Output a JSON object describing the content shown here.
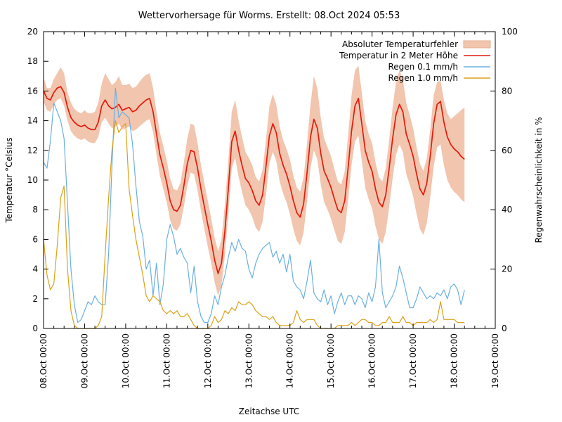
{
  "title": "Wettervorhersage für Worms. Erstellt: 08.Oct 2024 05:53",
  "axes": {
    "x": {
      "label": "Zeitachse UTC",
      "tick_labels": [
        "08.Oct 00:00",
        "09.Oct 00:00",
        "10.Oct 00:00",
        "11.Oct 00:00",
        "12.Oct 00:00",
        "13.Oct 00:00",
        "14.Oct 00:00",
        "15.Oct 00:00",
        "16.Oct 00:00",
        "17.Oct 00:00",
        "18.Oct 00:00",
        "19.Oct 00:00"
      ],
      "minor_ticks_per_day": 4
    },
    "y_left": {
      "label": "Temperatur °Celsius",
      "min": 0,
      "max": 20,
      "step": 2
    },
    "y_right": {
      "label": "Regenwahrscheinlichkeit in %",
      "min": 0,
      "max": 100,
      "step": 20
    }
  },
  "legend": [
    {
      "label": "Absoluter Temperaturfehler",
      "type": "band",
      "color": "#f2c5ae",
      "border": "#e0ad92"
    },
    {
      "label": "Temperatur in 2 Meter Höhe",
      "type": "line",
      "color": "#e41a0c"
    },
    {
      "label": "Regen 0.1 mm/h",
      "type": "line",
      "color": "#69b0e2"
    },
    {
      "label": "Regen 1.0 mm/h",
      "type": "line",
      "color": "#dca117"
    }
  ],
  "chart_data": {
    "type": "line",
    "title": "Wettervorhersage für Worms. Erstellt: 08.Oct 2024 05:53",
    "xlabel": "Zeitachse UTC",
    "x_unit": "hours since 08.Oct 2024 00:00 UTC",
    "x_step_hours": 2,
    "x_start_hour": 0,
    "x_axis_range_hours": [
      0,
      264
    ],
    "y_left_range": [
      0,
      20
    ],
    "y_right_range": [
      0,
      100
    ],
    "grid": false,
    "legend_position": "top-right-inside",
    "series": [
      {
        "name": "Absoluter Temperaturfehler",
        "kind": "band",
        "axis": "left",
        "color": "#f2c5ae",
        "upper": [
          16.9,
          16.2,
          16.2,
          16.8,
          17.2,
          17.6,
          17.2,
          15.9,
          15.2,
          14.8,
          14.6,
          14.5,
          14.7,
          14.5,
          14.5,
          14.6,
          15.2,
          16.5,
          17.2,
          16.8,
          16.4,
          16.6,
          17.0,
          16.4,
          16.4,
          16.5,
          16.2,
          16.3,
          16.6,
          16.9,
          17.1,
          17.2,
          16.2,
          14.6,
          13.2,
          12.3,
          11.3,
          10.1,
          9.4,
          9.3,
          9.8,
          11.2,
          12.8,
          13.8,
          13.7,
          12.5,
          11.0,
          9.8,
          8.6,
          7.4,
          6.1,
          5.2,
          6.0,
          8.4,
          11.3,
          14.6,
          15.4,
          14.0,
          12.9,
          11.9,
          11.5,
          11.0,
          10.2,
          9.9,
          10.7,
          12.7,
          15.0,
          15.8,
          15.1,
          13.6,
          12.7,
          12.1,
          11.4,
          10.3,
          9.5,
          9.2,
          10.2,
          12.5,
          15.1,
          17.0,
          16.2,
          14.2,
          12.8,
          12.2,
          11.6,
          10.7,
          9.9,
          9.7,
          10.6,
          13.0,
          15.7,
          17.4,
          17.7,
          15.9,
          14.0,
          13.1,
          12.5,
          11.2,
          10.2,
          9.9,
          10.8,
          12.7,
          14.9,
          16.6,
          17.4,
          16.8,
          15.2,
          14.4,
          13.5,
          12.2,
          11.1,
          10.6,
          11.5,
          13.4,
          15.7,
          16.6,
          16.7,
          15.4,
          14.5,
          14.1,
          14.3,
          14.5,
          14.7,
          14.9
        ],
        "lower": [
          15.3,
          14.7,
          14.6,
          15.1,
          15.4,
          15.5,
          15.0,
          14.0,
          13.3,
          13.0,
          12.8,
          12.7,
          12.8,
          12.6,
          12.5,
          12.5,
          12.9,
          13.9,
          14.2,
          13.8,
          13.5,
          13.6,
          13.8,
          13.4,
          13.5,
          13.6,
          13.3,
          13.4,
          13.6,
          13.8,
          14.0,
          14.1,
          13.2,
          11.7,
          10.3,
          9.4,
          8.5,
          7.3,
          6.7,
          6.6,
          7.0,
          8.2,
          9.6,
          10.5,
          10.4,
          9.3,
          7.9,
          6.7,
          5.5,
          4.4,
          3.1,
          2.2,
          2.9,
          5.0,
          7.7,
          10.8,
          11.5,
          10.2,
          9.2,
          8.3,
          8.0,
          7.5,
          6.8,
          6.5,
          7.2,
          9.0,
          11.1,
          11.9,
          11.3,
          9.9,
          9.1,
          8.5,
          7.7,
          6.7,
          5.9,
          5.6,
          6.5,
          8.5,
          10.8,
          12.0,
          11.4,
          9.7,
          8.5,
          8.0,
          7.4,
          6.6,
          5.9,
          5.7,
          6.5,
          8.6,
          11.0,
          12.6,
          13.0,
          11.3,
          9.5,
          8.7,
          8.1,
          6.9,
          6.0,
          5.7,
          6.5,
          8.2,
          10.1,
          11.7,
          12.4,
          11.9,
          10.4,
          9.7,
          8.9,
          7.7,
          6.7,
          6.3,
          7.1,
          8.8,
          10.9,
          12.2,
          12.4,
          11.0,
          10.0,
          9.5,
          9.2,
          9.0,
          8.7,
          8.5
        ]
      },
      {
        "name": "Temperatur in 2 Meter Höhe",
        "kind": "line",
        "axis": "left",
        "color": "#e41a0c",
        "width": 1.7,
        "values": [
          16.0,
          15.5,
          15.4,
          15.9,
          16.2,
          16.3,
          15.9,
          14.9,
          14.2,
          13.9,
          13.7,
          13.6,
          13.7,
          13.5,
          13.4,
          13.4,
          13.9,
          15.0,
          15.4,
          15.0,
          14.8,
          14.9,
          15.1,
          14.7,
          14.8,
          14.9,
          14.6,
          14.7,
          15.0,
          15.2,
          15.4,
          15.5,
          14.6,
          13.1,
          11.7,
          10.8,
          9.8,
          8.6,
          8.0,
          7.9,
          8.3,
          9.6,
          11.1,
          12.0,
          11.9,
          10.8,
          9.4,
          8.2,
          7.0,
          5.9,
          4.6,
          3.7,
          4.4,
          6.6,
          9.4,
          12.6,
          13.3,
          12.0,
          11.0,
          10.1,
          9.8,
          9.3,
          8.6,
          8.3,
          9.0,
          10.9,
          13.0,
          13.8,
          13.2,
          11.8,
          11.0,
          10.4,
          9.6,
          8.6,
          7.8,
          7.5,
          8.4,
          10.5,
          12.9,
          14.1,
          13.5,
          11.8,
          10.6,
          10.1,
          9.5,
          8.7,
          8.0,
          7.8,
          8.6,
          10.8,
          13.3,
          15.0,
          15.5,
          13.8,
          12.0,
          11.2,
          10.6,
          9.4,
          8.5,
          8.2,
          9.0,
          10.8,
          12.8,
          14.4,
          15.1,
          14.6,
          13.1,
          12.4,
          11.6,
          10.4,
          9.4,
          9.0,
          9.8,
          11.6,
          13.8,
          15.1,
          15.3,
          13.9,
          12.9,
          12.4,
          12.1,
          11.9,
          11.6,
          11.4
        ]
      },
      {
        "name": "Regen 0.1 mm/h",
        "kind": "line",
        "axis": "right",
        "color": "#69b0e2",
        "width": 1.2,
        "values": [
          56,
          54,
          63,
          76,
          73,
          70,
          64,
          42,
          20,
          8,
          2,
          3,
          6,
          9,
          8,
          11,
          9,
          8,
          8,
          25,
          55,
          81,
          71,
          73,
          72,
          71,
          62,
          48,
          36,
          31,
          20,
          23,
          11,
          22,
          8,
          15,
          30,
          35,
          31,
          25,
          27,
          24,
          22,
          12,
          21,
          9,
          4,
          2,
          2,
          5,
          11,
          8,
          14,
          18,
          24,
          29,
          26,
          30,
          27,
          26,
          20,
          17,
          22,
          25,
          27,
          28,
          29,
          24,
          26,
          22,
          25,
          19,
          25,
          16,
          14,
          13,
          10,
          16,
          23,
          12,
          10,
          9,
          13,
          8,
          11,
          5,
          9,
          12,
          8,
          11,
          11,
          8,
          11,
          10,
          7,
          12,
          9,
          14,
          30,
          12,
          7,
          9,
          11,
          14,
          21,
          17,
          12,
          7,
          7,
          10,
          14,
          12,
          10,
          11,
          10,
          12,
          11,
          13,
          10,
          14,
          15,
          13,
          8,
          13
        ]
      },
      {
        "name": "Regen 1.0 mm/h",
        "kind": "line",
        "axis": "right",
        "color": "#dca117",
        "width": 1.2,
        "values": [
          30,
          18,
          13,
          15,
          28,
          44,
          48,
          20,
          6,
          1,
          0,
          0,
          0,
          0,
          0,
          0,
          1,
          4,
          25,
          44,
          60,
          70,
          66,
          68,
          69,
          47,
          38,
          30,
          24,
          18,
          11,
          9,
          11,
          10,
          9,
          6,
          5,
          6,
          5,
          6,
          4,
          4,
          5,
          3,
          1,
          0,
          0,
          0,
          0,
          1,
          4,
          2,
          3,
          6,
          5,
          7,
          6,
          9,
          8,
          8,
          9,
          8,
          6,
          5,
          4,
          4,
          3,
          4,
          2,
          1,
          1,
          1,
          1,
          2,
          6,
          3,
          2,
          3,
          3,
          3,
          1,
          0,
          0,
          0,
          0,
          0,
          1,
          1,
          1,
          1,
          2,
          1,
          2,
          3,
          3,
          2,
          2,
          1,
          1,
          2,
          2,
          4,
          2,
          2,
          2,
          4,
          2,
          2,
          1,
          2,
          2,
          2,
          2,
          3,
          2,
          3,
          9,
          3,
          3,
          3,
          3,
          2,
          2,
          2
        ]
      }
    ]
  }
}
